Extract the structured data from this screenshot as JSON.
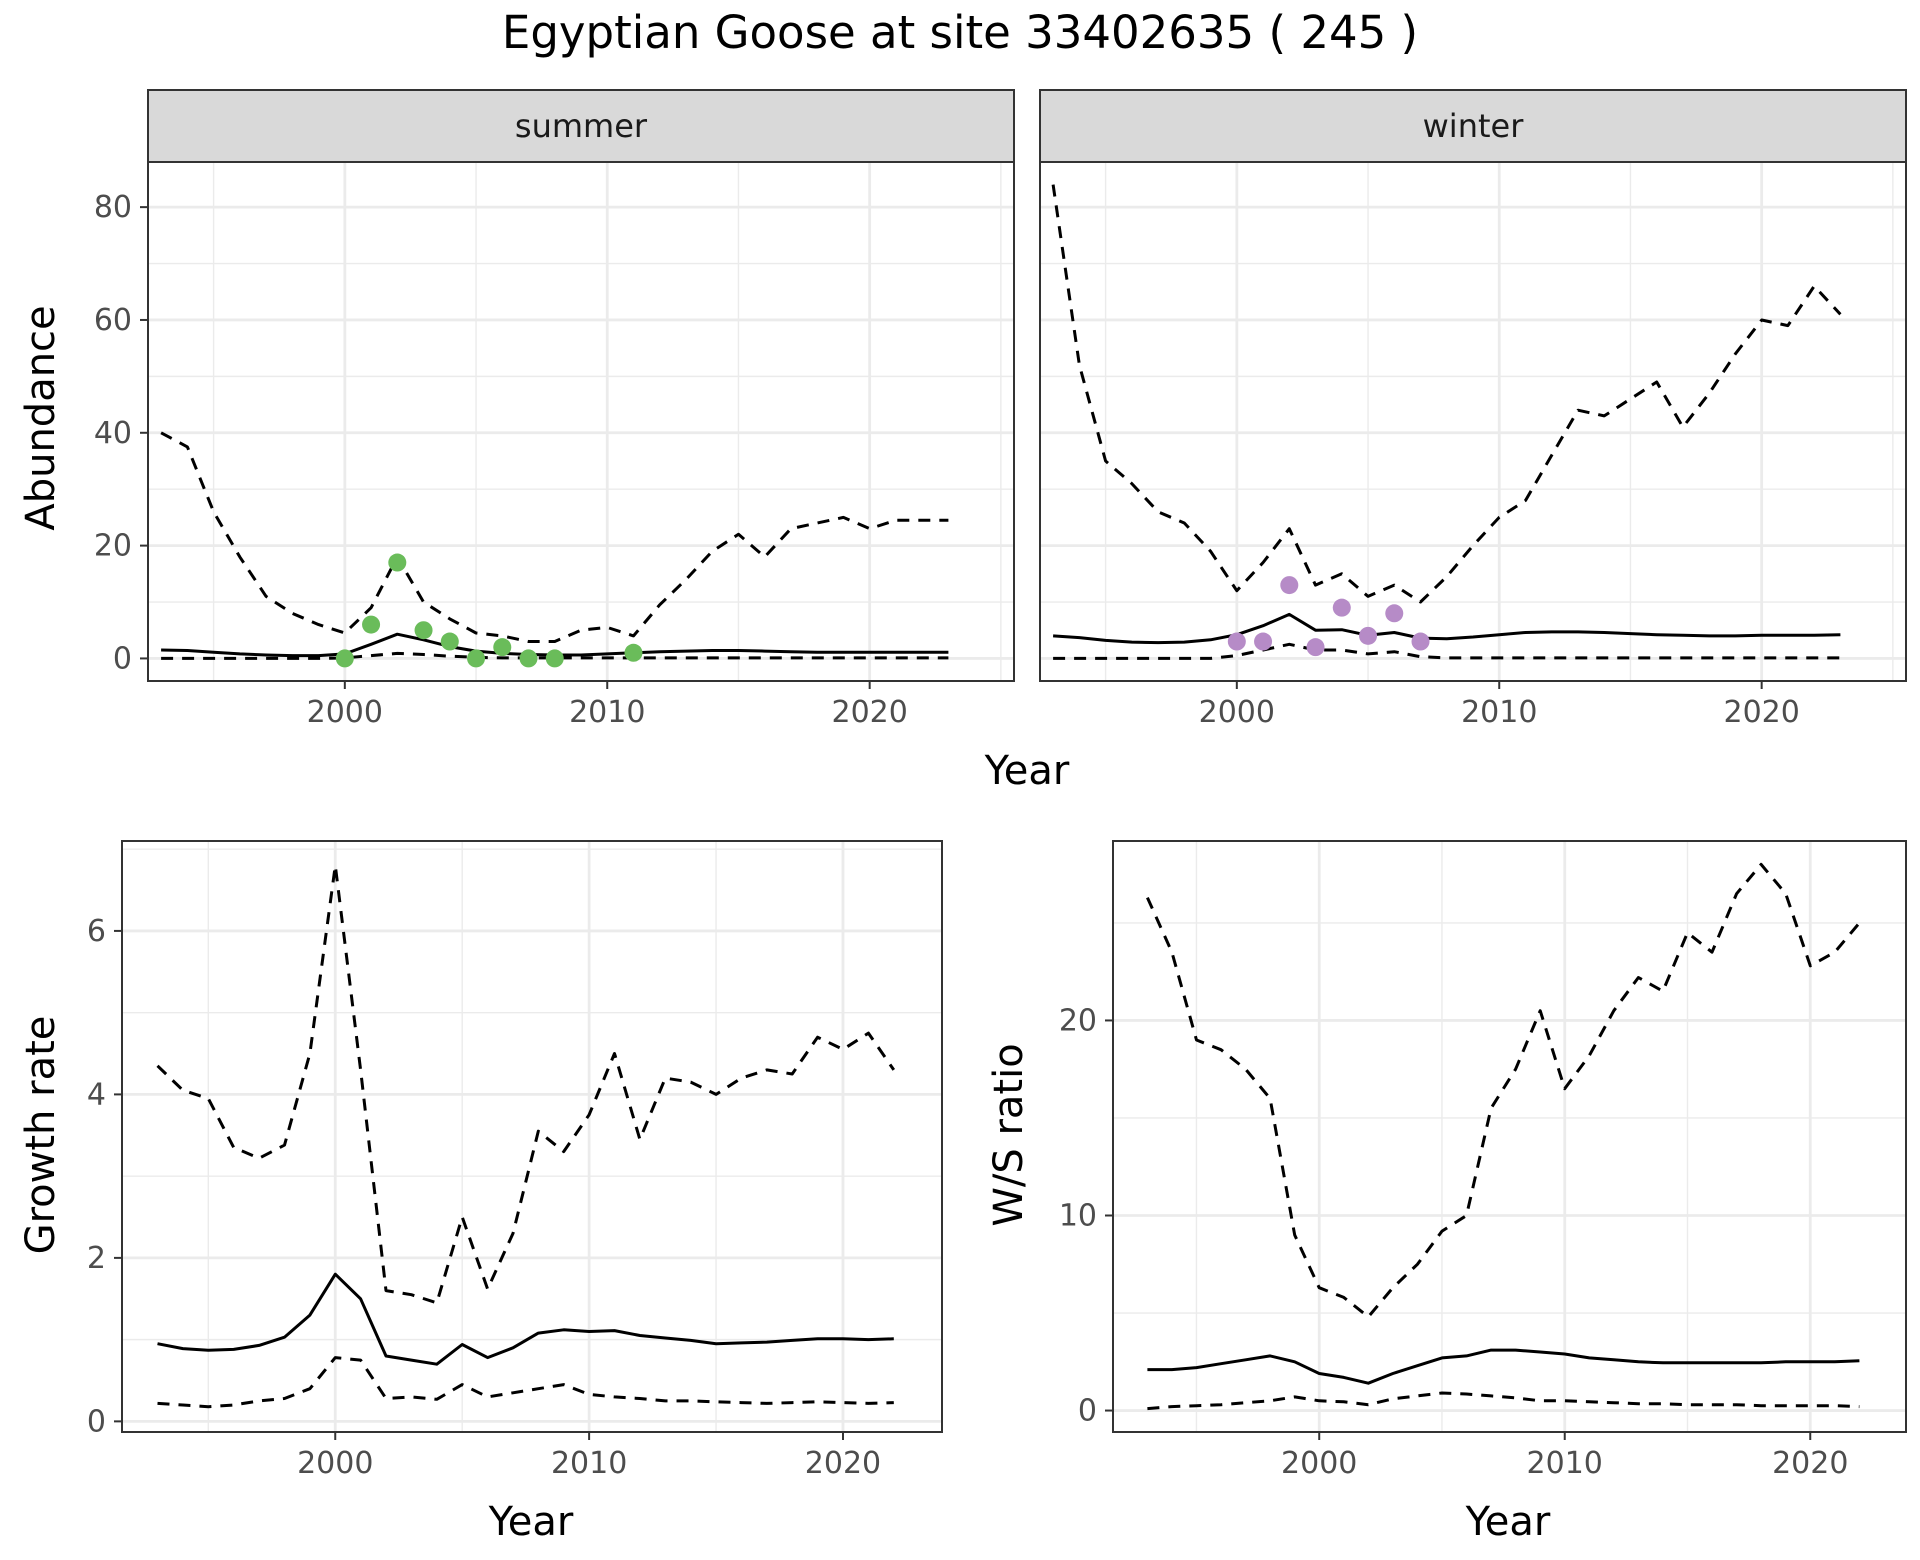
{
  "title": "Egyptian Goose at site 33402635 ( 245 )",
  "colors": {
    "summer_points": "#6ABC5A",
    "winter_points": "#B68BC7",
    "line": "#000000",
    "strip_bg": "#D9D9D9",
    "grid": "#EBEBEB"
  },
  "chart_data": [
    {
      "type": "line",
      "facet": "summer",
      "xlabel": "Year",
      "ylabel": "Abundance",
      "xlim": [
        1992.5,
        2025.5
      ],
      "ylim": [
        -4,
        88
      ],
      "x_ticks": [
        2000,
        2010,
        2020
      ],
      "y_ticks": [
        0,
        20,
        40,
        60,
        80
      ],
      "grid": true,
      "series": [
        {
          "style": "solid",
          "x": [
            1993,
            1994,
            1995,
            1996,
            1997,
            1998,
            1999,
            2000,
            2001,
            2002,
            2003,
            2004,
            2005,
            2006,
            2007,
            2008,
            2009,
            2010,
            2011,
            2012,
            2013,
            2014,
            2015,
            2016,
            2017,
            2018,
            2019,
            2020,
            2021,
            2022,
            2023
          ],
          "values": [
            1.5,
            1.4,
            1.1,
            0.8,
            0.6,
            0.5,
            0.5,
            0.8,
            2.5,
            4.3,
            3.3,
            2.1,
            1.3,
            0.9,
            0.7,
            0.6,
            0.6,
            0.8,
            1.0,
            1.2,
            1.3,
            1.4,
            1.4,
            1.3,
            1.2,
            1.1,
            1.1,
            1.1,
            1.1,
            1.1,
            1.1
          ]
        },
        {
          "style": "dashed",
          "x": [
            1993,
            1994,
            1995,
            1996,
            1997,
            1998,
            1999,
            2000,
            2001,
            2002,
            2003,
            2004,
            2005,
            2006,
            2007,
            2008,
            2009,
            2010,
            2011,
            2012,
            2013,
            2014,
            2015,
            2016,
            2017,
            2018,
            2019,
            2020,
            2021,
            2022,
            2023
          ],
          "values": [
            40,
            37.5,
            26,
            18,
            11,
            8,
            6,
            4.5,
            9,
            18,
            10,
            7,
            4.5,
            4,
            3,
            3,
            5,
            5.5,
            4,
            9.5,
            14,
            19,
            22,
            18,
            23,
            24,
            25,
            23,
            24.5,
            24.5,
            24.5
          ]
        },
        {
          "style": "dashed",
          "x": [
            1993,
            1994,
            1995,
            1996,
            1997,
            1998,
            1999,
            2000,
            2001,
            2002,
            2003,
            2004,
            2005,
            2006,
            2007,
            2008,
            2009,
            2010,
            2011,
            2012,
            2013,
            2014,
            2015,
            2016,
            2017,
            2018,
            2019,
            2020,
            2021,
            2022,
            2023
          ],
          "values": [
            0,
            0,
            0,
            0,
            0,
            0,
            0,
            0.1,
            0.5,
            0.9,
            0.7,
            0.4,
            0.2,
            0.1,
            0.1,
            0.1,
            0.1,
            0.1,
            0.1,
            0.1,
            0.1,
            0.1,
            0.1,
            0.1,
            0.1,
            0.1,
            0.1,
            0.1,
            0.1,
            0.1,
            0.1
          ]
        }
      ],
      "points": {
        "x": [
          2000,
          2001,
          2002,
          2003,
          2004,
          2005,
          2006,
          2007,
          2008,
          2011
        ],
        "values": [
          0,
          6,
          17,
          5,
          3,
          0,
          2,
          0,
          0,
          1
        ]
      }
    },
    {
      "type": "line",
      "facet": "winter",
      "xlabel": "Year",
      "ylabel": "Abundance",
      "xlim": [
        1992.5,
        2025.5
      ],
      "ylim": [
        -4,
        88
      ],
      "x_ticks": [
        2000,
        2010,
        2020
      ],
      "y_ticks": [
        0,
        20,
        40,
        60,
        80
      ],
      "grid": true,
      "series": [
        {
          "style": "solid",
          "x": [
            1993,
            1994,
            1995,
            1996,
            1997,
            1998,
            1999,
            2000,
            2001,
            2002,
            2003,
            2004,
            2005,
            2006,
            2007,
            2008,
            2009,
            2010,
            2011,
            2012,
            2013,
            2014,
            2015,
            2016,
            2017,
            2018,
            2019,
            2020,
            2021,
            2022,
            2023
          ],
          "values": [
            4,
            3.7,
            3.2,
            2.9,
            2.8,
            2.9,
            3.3,
            4.2,
            5.8,
            7.8,
            5,
            5.1,
            4.1,
            4.6,
            3.6,
            3.5,
            3.8,
            4.2,
            4.6,
            4.7,
            4.7,
            4.6,
            4.4,
            4.2,
            4.1,
            4.0,
            4.0,
            4.1,
            4.1,
            4.1,
            4.2
          ]
        },
        {
          "style": "dashed",
          "x": [
            1993,
            1994,
            1995,
            1996,
            1997,
            1998,
            1999,
            2000,
            2001,
            2002,
            2003,
            2004,
            2005,
            2006,
            2007,
            2008,
            2009,
            2010,
            2011,
            2012,
            2013,
            2014,
            2015,
            2016,
            2017,
            2018,
            2019,
            2020,
            2021,
            2022,
            2023
          ],
          "values": [
            84,
            52,
            35,
            31,
            26,
            24,
            19,
            12,
            17,
            23,
            13,
            15,
            11,
            13,
            10,
            14.5,
            20,
            25,
            28,
            36,
            44,
            43,
            46,
            49,
            41,
            47,
            54,
            60,
            59,
            66,
            61
          ]
        },
        {
          "style": "dashed",
          "x": [
            1993,
            1994,
            1995,
            1996,
            1997,
            1998,
            1999,
            2000,
            2001,
            2002,
            2003,
            2004,
            2005,
            2006,
            2007,
            2008,
            2009,
            2010,
            2011,
            2012,
            2013,
            2014,
            2015,
            2016,
            2017,
            2018,
            2019,
            2020,
            2021,
            2022,
            2023
          ],
          "values": [
            0,
            0,
            0,
            0,
            0,
            0,
            0,
            0.5,
            1.5,
            2.5,
            1.5,
            1.5,
            0.8,
            1.2,
            0.3,
            0.1,
            0.1,
            0.1,
            0.1,
            0.1,
            0.1,
            0.1,
            0.1,
            0.1,
            0.1,
            0.1,
            0.1,
            0.1,
            0.1,
            0.1,
            0.1
          ]
        }
      ],
      "points": {
        "x": [
          2000,
          2001,
          2002,
          2003,
          2004,
          2005,
          2006,
          2007
        ],
        "values": [
          3,
          3,
          13,
          2,
          9,
          4,
          8,
          3
        ]
      }
    },
    {
      "type": "line",
      "xlabel": "Year",
      "ylabel": "Growth rate",
      "xlim": [
        1991.6,
        2023.9
      ],
      "ylim": [
        -0.13,
        7.1
      ],
      "x_ticks": [
        2000,
        2010,
        2020
      ],
      "y_ticks": [
        0,
        2,
        4,
        6
      ],
      "grid": true,
      "series": [
        {
          "style": "solid",
          "x": [
            1993,
            1994,
            1995,
            1996,
            1997,
            1998,
            1999,
            2000,
            2001,
            2002,
            2003,
            2004,
            2005,
            2006,
            2007,
            2008,
            2009,
            2010,
            2011,
            2012,
            2013,
            2014,
            2015,
            2016,
            2017,
            2018,
            2019,
            2020,
            2021,
            2022
          ],
          "values": [
            0.95,
            0.89,
            0.87,
            0.88,
            0.93,
            1.03,
            1.3,
            1.8,
            1.5,
            0.8,
            0.75,
            0.7,
            0.94,
            0.78,
            0.9,
            1.08,
            1.12,
            1.1,
            1.11,
            1.05,
            1.02,
            0.99,
            0.95,
            0.96,
            0.97,
            0.99,
            1.01,
            1.01,
            1.0,
            1.01
          ]
        },
        {
          "style": "dashed",
          "x": [
            1993,
            1994,
            1995,
            1996,
            1997,
            1998,
            1999,
            2000,
            2001,
            2002,
            2003,
            2004,
            2005,
            2006,
            2007,
            2008,
            2009,
            2010,
            2011,
            2012,
            2013,
            2014,
            2015,
            2016,
            2017,
            2018,
            2019,
            2020,
            2021,
            2022
          ],
          "values": [
            4.35,
            4.05,
            3.95,
            3.35,
            3.22,
            3.38,
            4.5,
            6.8,
            4.3,
            1.6,
            1.55,
            1.45,
            2.5,
            1.62,
            2.3,
            3.55,
            3.3,
            3.75,
            4.5,
            3.45,
            4.2,
            4.15,
            4.0,
            4.2,
            4.3,
            4.25,
            4.7,
            4.55,
            4.75,
            4.3
          ]
        },
        {
          "style": "dashed",
          "x": [
            1993,
            1994,
            1995,
            1996,
            1997,
            1998,
            1999,
            2000,
            2001,
            2002,
            2003,
            2004,
            2005,
            2006,
            2007,
            2008,
            2009,
            2010,
            2011,
            2012,
            2013,
            2014,
            2015,
            2016,
            2017,
            2018,
            2019,
            2020,
            2021,
            2022
          ],
          "values": [
            0.22,
            0.2,
            0.18,
            0.2,
            0.25,
            0.28,
            0.4,
            0.78,
            0.75,
            0.28,
            0.3,
            0.27,
            0.45,
            0.3,
            0.35,
            0.4,
            0.45,
            0.33,
            0.3,
            0.28,
            0.25,
            0.25,
            0.24,
            0.23,
            0.22,
            0.23,
            0.24,
            0.23,
            0.22,
            0.23
          ]
        }
      ]
    },
    {
      "type": "line",
      "xlabel": "Year",
      "ylabel": "W/S ratio",
      "xlim": [
        1991.6,
        2023.9
      ],
      "ylim": [
        -1.1,
        29.2
      ],
      "x_ticks": [
        2000,
        2010,
        2020
      ],
      "y_ticks": [
        0,
        10,
        20
      ],
      "grid": true,
      "series": [
        {
          "style": "solid",
          "x": [
            1993,
            1994,
            1995,
            1996,
            1997,
            1998,
            1999,
            2000,
            2001,
            2002,
            2003,
            2004,
            2005,
            2006,
            2007,
            2008,
            2009,
            2010,
            2011,
            2012,
            2013,
            2014,
            2015,
            2016,
            2017,
            2018,
            2019,
            2020,
            2021,
            2022
          ],
          "values": [
            2.1,
            2.1,
            2.2,
            2.4,
            2.6,
            2.8,
            2.5,
            1.9,
            1.7,
            1.4,
            1.9,
            2.3,
            2.7,
            2.8,
            3.1,
            3.1,
            3.0,
            2.9,
            2.7,
            2.6,
            2.5,
            2.45,
            2.45,
            2.45,
            2.45,
            2.45,
            2.5,
            2.5,
            2.5,
            2.55
          ]
        },
        {
          "style": "dashed",
          "x": [
            1993,
            1994,
            1995,
            1996,
            1997,
            1998,
            1999,
            2000,
            2001,
            2002,
            2003,
            2004,
            2005,
            2006,
            2007,
            2008,
            2009,
            2010,
            2011,
            2012,
            2013,
            2014,
            2015,
            2016,
            2017,
            2018,
            2019,
            2020,
            2021,
            2022
          ],
          "values": [
            26.3,
            23.5,
            19,
            18.5,
            17.5,
            16,
            9,
            6.3,
            5.8,
            4.8,
            6.3,
            7.5,
            9.2,
            10,
            15.5,
            17.5,
            20.5,
            16.5,
            18.2,
            20.5,
            22.2,
            21.5,
            24.5,
            23.5,
            26.5,
            28,
            26.5,
            22.8,
            23.5,
            25
          ]
        },
        {
          "style": "dashed",
          "x": [
            1993,
            1994,
            1995,
            1996,
            1997,
            1998,
            1999,
            2000,
            2001,
            2002,
            2003,
            2004,
            2005,
            2006,
            2007,
            2008,
            2009,
            2010,
            2011,
            2012,
            2013,
            2014,
            2015,
            2016,
            2017,
            2018,
            2019,
            2020,
            2021,
            2022
          ],
          "values": [
            0.1,
            0.2,
            0.25,
            0.3,
            0.4,
            0.5,
            0.7,
            0.5,
            0.45,
            0.3,
            0.6,
            0.75,
            0.9,
            0.85,
            0.75,
            0.65,
            0.5,
            0.5,
            0.45,
            0.4,
            0.35,
            0.35,
            0.3,
            0.3,
            0.3,
            0.25,
            0.25,
            0.25,
            0.25,
            0.2
          ]
        }
      ]
    }
  ]
}
